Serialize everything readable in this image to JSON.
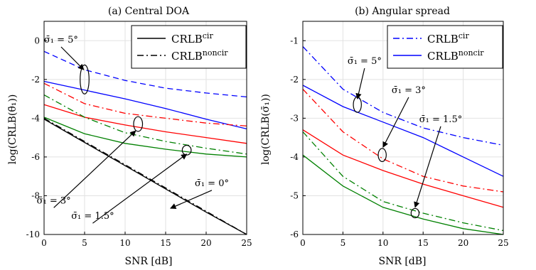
{
  "chart_data": [
    {
      "type": "line",
      "title": "(a) Central DOA",
      "xlabel": "SNR [dB]",
      "ylabel": "log(CRLB(θ̄₁))",
      "xlim": [
        0,
        25
      ],
      "ylim": [
        -10,
        1
      ],
      "xticks": [
        0,
        5,
        10,
        15,
        20,
        25
      ],
      "yticks": [
        -10,
        -8,
        -6,
        -4,
        -2,
        0
      ],
      "grid": true,
      "legend_position": "top-right",
      "legend": [
        {
          "label": "CRLB",
          "sup": "cir",
          "style": "solid",
          "color": "#000000"
        },
        {
          "label": "CRLB",
          "sup": "noncir",
          "style": "dashdot",
          "color": "#000000"
        }
      ],
      "x": [
        0,
        5,
        10,
        15,
        20,
        25
      ],
      "series": [
        {
          "color": "#0000ff",
          "style": "dash",
          "values": [
            -0.55,
            -1.5,
            -2.05,
            -2.45,
            -2.7,
            -2.9
          ]
        },
        {
          "color": "#0000ff",
          "style": "solid",
          "values": [
            -2.1,
            -2.55,
            -3.0,
            -3.5,
            -4.05,
            -4.55
          ]
        },
        {
          "color": "#ff0000",
          "style": "dashdot",
          "values": [
            -2.2,
            -3.25,
            -3.75,
            -4.0,
            -4.25,
            -4.4
          ]
        },
        {
          "color": "#ff0000",
          "style": "solid",
          "values": [
            -3.3,
            -3.95,
            -4.35,
            -4.7,
            -5.0,
            -5.3
          ]
        },
        {
          "color": "#008000",
          "style": "dashdot",
          "values": [
            -2.8,
            -3.95,
            -4.75,
            -5.2,
            -5.55,
            -5.85
          ]
        },
        {
          "color": "#008000",
          "style": "solid",
          "values": [
            -3.95,
            -4.8,
            -5.3,
            -5.6,
            -5.85,
            -6.0
          ]
        },
        {
          "color": "#000000",
          "style": "dashdot",
          "values": [
            -4.0,
            -5.2,
            -6.4,
            -7.6,
            -8.8,
            -10.0
          ]
        },
        {
          "color": "#000000",
          "style": "solid",
          "values": [
            -4.05,
            -5.25,
            -6.45,
            -7.65,
            -8.85,
            -10.0
          ]
        }
      ],
      "annotations": [
        {
          "text": "σ̄₁ = 5°",
          "label_at": [
            2.1,
            -0.1
          ],
          "arrow_to": [
            4.9,
            -1.5
          ],
          "ellipse_at": [
            5.0,
            -2.0
          ],
          "ellipse_r": [
            0.55,
            0.75
          ]
        },
        {
          "text": "σ̄₁ = 3°",
          "label_at": [
            1.2,
            -8.4
          ],
          "arrow_to": [
            11.3,
            -4.65
          ],
          "ellipse_at": [
            11.6,
            -4.3
          ],
          "ellipse_r": [
            0.55,
            0.38
          ]
        },
        {
          "text": "σ̄₁ = 1.5°",
          "label_at": [
            6.0,
            -9.2
          ],
          "arrow_to": [
            17.6,
            -5.85
          ],
          "ellipse_at": [
            17.6,
            -5.65
          ],
          "ellipse_r": [
            0.55,
            0.25
          ]
        },
        {
          "text": "σ̄₁ = 0°",
          "label_at": [
            20.7,
            -7.5
          ],
          "arrow_to": [
            15.6,
            -8.65
          ],
          "ellipse_at": null,
          "ellipse_r": null
        }
      ]
    },
    {
      "type": "line",
      "title": "(b) Angular spread",
      "xlabel": "SNR [dB]",
      "ylabel": "log(CRLB(σ̄₁))",
      "xlim": [
        0,
        25
      ],
      "ylim": [
        -6,
        -0.5
      ],
      "xticks": [
        0,
        5,
        10,
        15,
        20,
        25
      ],
      "yticks": [
        -6,
        -5,
        -4,
        -3,
        -2,
        -1
      ],
      "grid": true,
      "legend_position": "top-right",
      "legend": [
        {
          "label": "CRLB",
          "sup": "cir",
          "style": "dashdot",
          "color": "#0000ff"
        },
        {
          "label": "CRLB",
          "sup": "noncir",
          "style": "solid",
          "color": "#0000ff"
        }
      ],
      "x": [
        0,
        5,
        10,
        15,
        20,
        25
      ],
      "series": [
        {
          "color": "#0000ff",
          "style": "dashdot",
          "values": [
            -1.15,
            -2.25,
            -2.85,
            -3.25,
            -3.5,
            -3.7
          ]
        },
        {
          "color": "#0000ff",
          "style": "solid",
          "values": [
            -2.15,
            -2.7,
            -3.1,
            -3.5,
            -4.0,
            -4.5
          ]
        },
        {
          "color": "#ff0000",
          "style": "dashdot",
          "values": [
            -2.25,
            -3.35,
            -4.05,
            -4.5,
            -4.75,
            -4.9
          ]
        },
        {
          "color": "#ff0000",
          "style": "solid",
          "values": [
            -3.3,
            -3.95,
            -4.35,
            -4.7,
            -5.0,
            -5.3
          ]
        },
        {
          "color": "#008000",
          "style": "dashdot",
          "values": [
            -3.35,
            -4.5,
            -5.15,
            -5.45,
            -5.7,
            -5.9
          ]
        },
        {
          "color": "#008000",
          "style": "solid",
          "values": [
            -3.95,
            -4.75,
            -5.3,
            -5.6,
            -5.85,
            -6.0
          ]
        }
      ],
      "annotations": [
        {
          "text": "σ̄₁ = 5°",
          "label_at": [
            7.7,
            -1.6
          ],
          "arrow_to": [
            6.8,
            -2.5
          ],
          "ellipse_at": [
            6.8,
            -2.65
          ],
          "ellipse_r": [
            0.5,
            0.2
          ]
        },
        {
          "text": "σ̄₁ = 3°",
          "label_at": [
            13.2,
            -2.35
          ],
          "arrow_to": [
            10.0,
            -3.75
          ],
          "ellipse_at": [
            9.9,
            -3.95
          ],
          "ellipse_r": [
            0.5,
            0.17
          ]
        },
        {
          "text": "σ̄₁ = 1.5°",
          "label_at": [
            17.2,
            -3.1
          ],
          "arrow_to": [
            14.0,
            -5.3
          ],
          "ellipse_at": [
            14.0,
            -5.45
          ],
          "ellipse_r": [
            0.5,
            0.12
          ]
        }
      ]
    }
  ]
}
